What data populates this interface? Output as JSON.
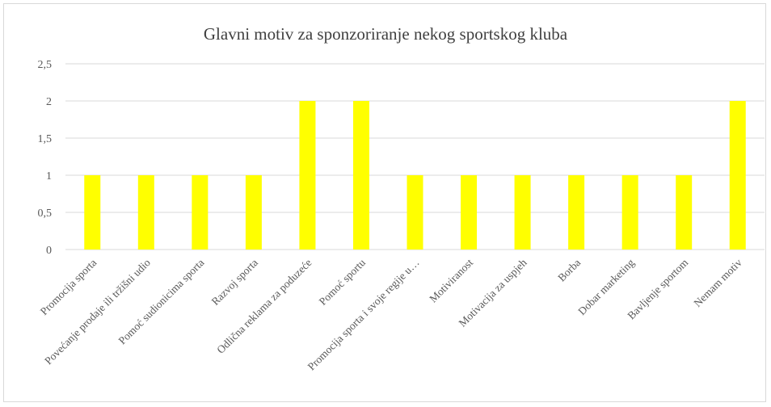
{
  "chart_data": {
    "type": "bar",
    "title": "Glavni  motiv  za sponzoriranje nekog sportskog kluba",
    "categories": [
      "Promocija sporta",
      "Povećanje prodaje ili tržišni udio",
      "Pomoć sudionicima sporta",
      "Razvoj sporta",
      "Odlična reklama za poduzeće",
      "Pomoć sportu",
      "Promocija sporta i svoje regije u…",
      "Motiviranost",
      "Motivacija za uspjeh",
      "Borba",
      "Dobar marketing",
      "Bavljenje sportom",
      "Nemam motiv"
    ],
    "values": [
      1,
      1,
      1,
      1,
      2,
      2,
      1,
      1,
      1,
      1,
      1,
      1,
      2
    ],
    "ylim": [
      0,
      2.5
    ],
    "yticks": [
      "0",
      "0,5",
      "1",
      "1,5",
      "2",
      "2,5"
    ],
    "xlabel": "",
    "ylabel": "",
    "bar_color": "#ffff00",
    "grid": true,
    "legend": "none"
  }
}
